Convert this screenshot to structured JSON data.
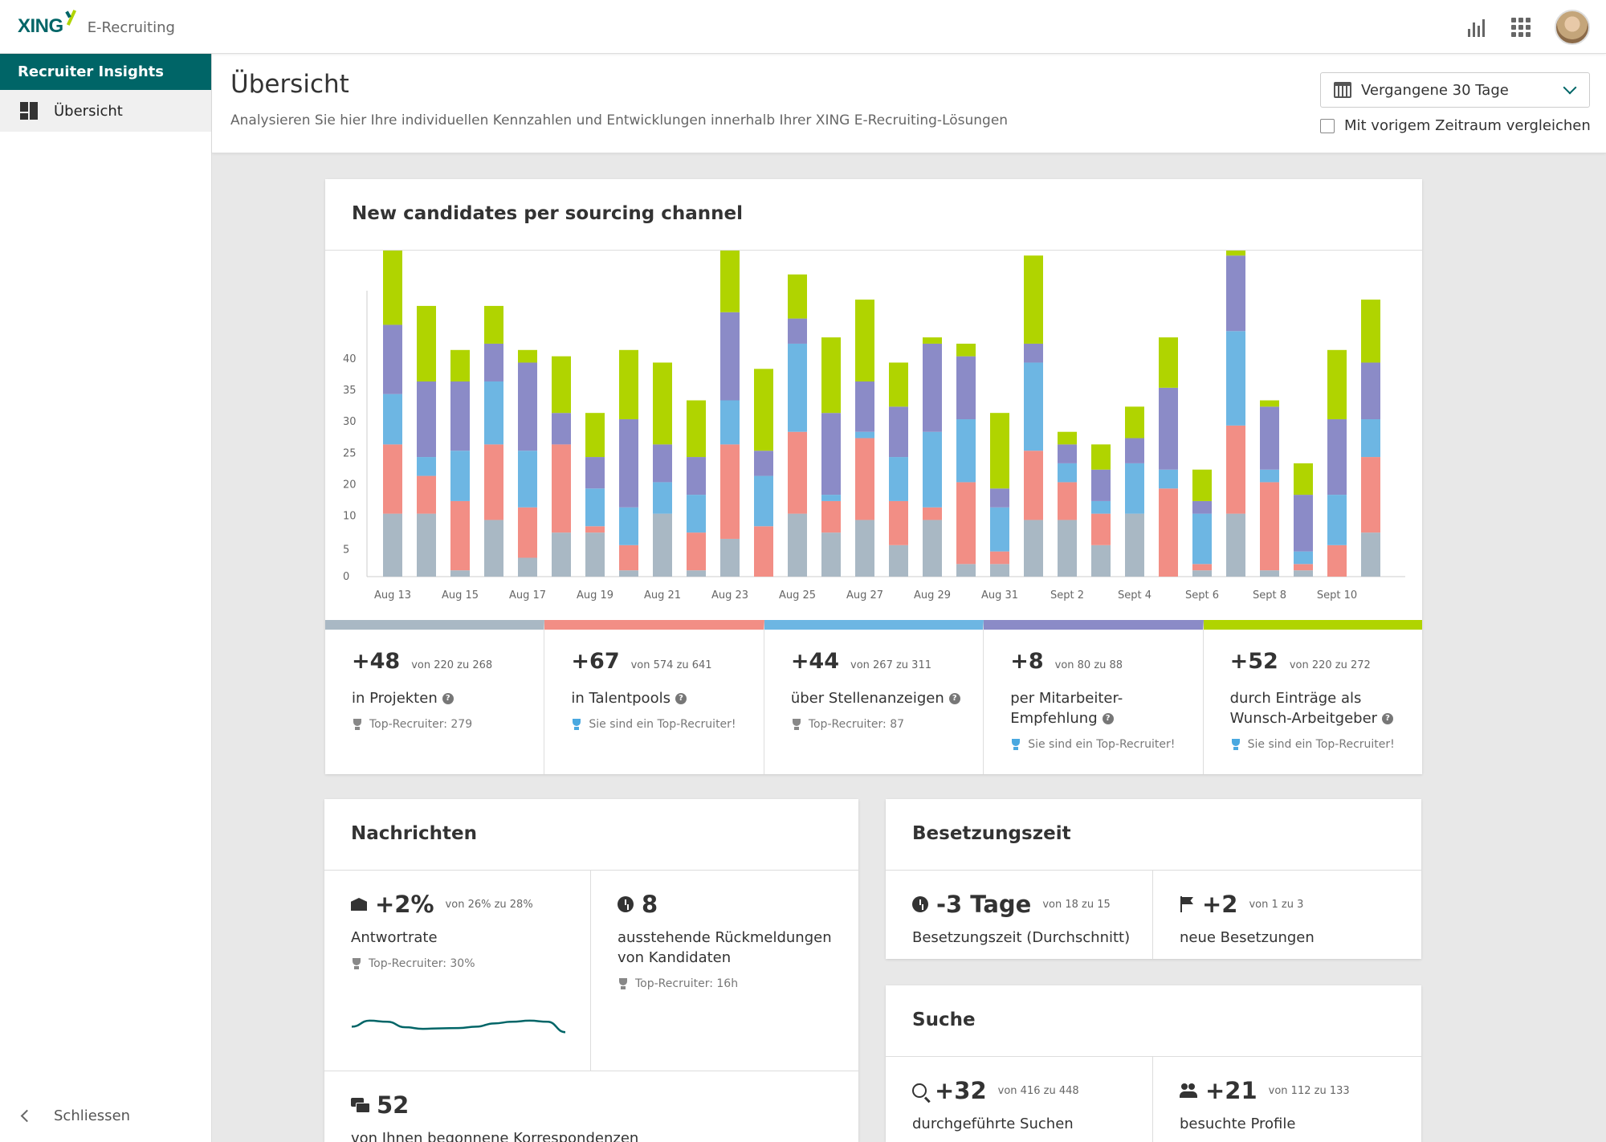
{
  "app": {
    "logo_text": "XING",
    "product": "E-Recruiting"
  },
  "topbar": {
    "icons": [
      "chart-icon",
      "apps-grid-icon",
      "avatar"
    ]
  },
  "sidebar": {
    "header": "Recruiter Insights",
    "items": [
      {
        "label": "Übersicht",
        "icon": "dashboard-icon"
      }
    ],
    "footer_label": "Schliessen"
  },
  "page": {
    "title": "Übersicht",
    "subtitle": "Analysieren Sie hier Ihre individuellen Kennzahlen und Entwicklungen innerhalb Ihrer XING E-Recruiting-Lösungen",
    "period_select": "Vergangene 30 Tage",
    "compare_label": "Mit vorigem Zeitraum vergleichen"
  },
  "colors": {
    "brand": "#006567",
    "projekte": "#a9b8c4",
    "talentpools": "#f28e85",
    "stellenanzeigen": "#6db6e3",
    "mitarbeiter": "#8b8bc7",
    "wunsch": "#b0d400"
  },
  "chart_card": {
    "title": "New candidates per sourcing channel"
  },
  "chart_data": {
    "type": "bar",
    "stacked": true,
    "categories": [
      "Aug 13",
      "Aug 14",
      "Aug 15",
      "Aug 16",
      "Aug 17",
      "Aug 18",
      "Aug 19",
      "Aug 20",
      "Aug 21",
      "Aug 22",
      "Aug 23",
      "Aug 24",
      "Aug 25",
      "Aug 26",
      "Aug 27",
      "Aug 28",
      "Aug 29",
      "Aug 30",
      "Aug 31",
      "Sept 1",
      "Sept 2",
      "Sept 3",
      "Sept 4",
      "Sept 5",
      "Sept 6",
      "Sept 7",
      "Sept 8",
      "Sept 9",
      "Sept 10",
      "Sept 11"
    ],
    "tick_labels": [
      "Aug 13",
      "Aug 15",
      "Aug 17",
      "Aug 19",
      "Aug 21",
      "Aug 23",
      "Aug 25",
      "Aug 27",
      "Aug 29",
      "Aug 31",
      "Sept 2",
      "Sept 4",
      "Sept 6",
      "Sept 8",
      "Sept 10"
    ],
    "y_ticks": [
      0,
      5,
      10,
      20,
      25,
      30,
      35,
      40
    ],
    "series": [
      {
        "name": "in Projekten",
        "values": [
          10,
          10,
          1,
          9,
          3,
          7,
          7,
          1,
          10,
          1,
          6,
          0,
          10,
          7,
          9,
          5,
          9,
          2,
          2,
          9,
          9,
          5,
          10,
          0,
          1,
          10,
          1,
          1,
          0,
          7
        ]
      },
      {
        "name": "in Talentpools",
        "values": [
          11,
          6,
          11,
          12,
          8,
          14,
          1,
          4,
          0,
          6,
          15,
          8,
          13,
          5,
          13,
          7,
          2,
          13,
          2,
          11,
          6,
          5,
          0,
          14,
          1,
          14,
          14,
          1,
          5,
          12
        ]
      },
      {
        "name": "über Stellenanzeigen",
        "values": [
          8,
          3,
          8,
          10,
          9,
          0,
          6,
          6,
          5,
          6,
          7,
          8,
          14,
          1,
          1,
          7,
          12,
          10,
          7,
          14,
          3,
          2,
          8,
          3,
          8,
          15,
          2,
          2,
          8,
          6
        ]
      },
      {
        "name": "per Mitarbeiter-Empfehlung",
        "values": [
          11,
          12,
          11,
          6,
          14,
          5,
          5,
          14,
          6,
          6,
          14,
          4,
          4,
          13,
          8,
          8,
          14,
          10,
          3,
          3,
          3,
          5,
          4,
          13,
          2,
          12,
          10,
          9,
          12,
          9
        ]
      },
      {
        "name": "durch Einträge als Wunsch-Arbeitgeber",
        "values": [
          15,
          12,
          5,
          6,
          2,
          9,
          7,
          11,
          13,
          9,
          10,
          13,
          7,
          12,
          13,
          7,
          1,
          2,
          12,
          14,
          2,
          4,
          5,
          8,
          5,
          7,
          1,
          5,
          11,
          10
        ]
      }
    ]
  },
  "stats": [
    {
      "num": "+48",
      "range": "von 220 zu 268",
      "label": "in Projekten",
      "rec": "Top-Recruiter: 279",
      "rec_type": "grey"
    },
    {
      "num": "+67",
      "range": "von 574 zu 641",
      "label": "in Talentpools",
      "rec": "Sie sind ein Top-Recruiter!",
      "rec_type": "blue"
    },
    {
      "num": "+44",
      "range": "von 267 zu 311",
      "label": "über Stellenanzeigen",
      "rec": "Top-Recruiter: 87",
      "rec_type": "grey"
    },
    {
      "num": "+8",
      "range": "von 80 zu 88",
      "label": "per Mitarbeiter-Empfehlung",
      "label_line1": "per Mitarbeiter-",
      "label_line2": "Empfehlung",
      "rec": "Sie sind ein Top-Recruiter!",
      "rec_type": "blue"
    },
    {
      "num": "+52",
      "range": "von 220 zu 272",
      "label_line1": "durch Einträge als",
      "label_line2": "Wunsch-Arbeitgeber",
      "rec": "Sie sind ein Top-Recruiter!",
      "rec_type": "blue"
    }
  ],
  "nachrichten": {
    "title": "Nachrichten",
    "antwortrate": {
      "num": "+2%",
      "range": "von 26% zu 28%",
      "label": "Antwortrate",
      "rec": "Top-Recruiter: 30%",
      "icon": "mail-open-icon"
    },
    "ausstehend": {
      "num": "8",
      "label_line1": "ausstehende Rückmeldungen",
      "label_line2": "von Kandidaten",
      "rec": "Top-Recruiter: 16h",
      "icon": "clock-icon"
    },
    "korrespondenzen": {
      "num": "52",
      "label": "von Ihnen begonnene Korrespondenzen",
      "icon": "chat-icon"
    },
    "sparkline": [
      0.4,
      0.62,
      0.58,
      0.38,
      0.32,
      0.34,
      0.35,
      0.4,
      0.52,
      0.58,
      0.62,
      0.58,
      0.2
    ]
  },
  "besetzungszeit": {
    "title": "Besetzungszeit",
    "tage": {
      "num": "-3 Tage",
      "range": "von 18 zu 15",
      "label": "Besetzungszeit (Durchschnitt)",
      "icon": "clock-icon"
    },
    "besetzungen": {
      "num": "+2",
      "range": "von 1 zu 3",
      "label": "neue Besetzungen",
      "icon": "flag-icon"
    }
  },
  "suche": {
    "title": "Suche",
    "suchen": {
      "num": "+32",
      "range": "von 416 zu 448",
      "label": "durchgeführte Suchen",
      "icon": "search-icon"
    },
    "profile": {
      "num": "+21",
      "range": "von 112 zu 133",
      "label": "besuchte Profile",
      "icon": "users-icon"
    }
  }
}
